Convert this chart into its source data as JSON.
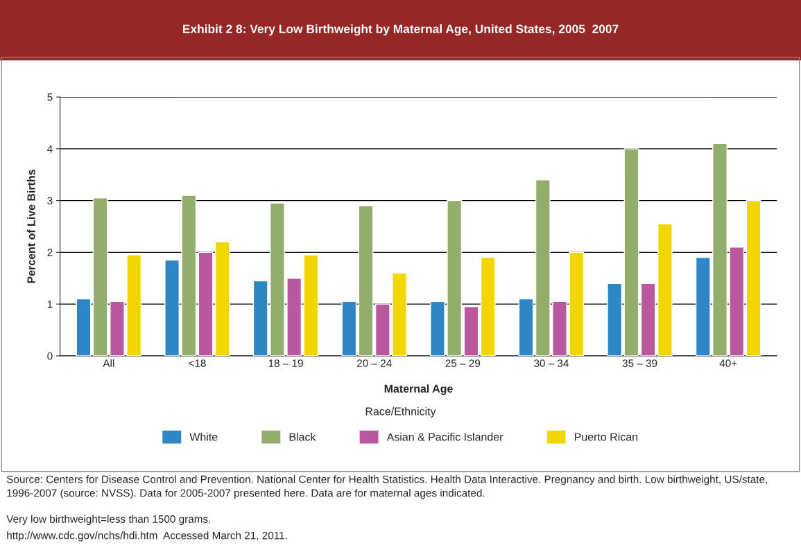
{
  "chart_data": {
    "type": "bar",
    "title": "Exhibit 2 8: Very Low Birthweight by Maternal Age, United States, 2005  2007",
    "xlabel": "Maternal Age",
    "ylabel": "Percent of Live Births",
    "legend_title": "Race/Ethnicity",
    "categories": [
      "All",
      "<18",
      "18 – 19",
      "20 – 24",
      "25 – 29",
      "30 – 34",
      "35 – 39",
      "40+"
    ],
    "series": [
      {
        "name": "White",
        "color": "#2e86c6",
        "values": [
          1.1,
          1.85,
          1.45,
          1.05,
          1.05,
          1.1,
          1.4,
          1.9
        ]
      },
      {
        "name": "Black",
        "color": "#93ad6c",
        "values": [
          3.05,
          3.1,
          2.95,
          2.9,
          3.0,
          3.4,
          4.0,
          4.1
        ]
      },
      {
        "name": "Asian & Pacific Islander",
        "color": "#b9589e",
        "values": [
          1.05,
          2.0,
          1.5,
          1.0,
          0.95,
          1.05,
          1.4,
          2.1
        ]
      },
      {
        "name": "Puerto Rican",
        "color": "#f2d600",
        "values": [
          1.95,
          2.2,
          1.95,
          1.6,
          1.9,
          2.0,
          2.55,
          3.0
        ]
      }
    ],
    "ylim": [
      0,
      5
    ],
    "yticks": [
      0,
      1,
      2,
      3,
      4,
      5
    ],
    "grid": "y",
    "legend": "bottom",
    "annotations": [
      "Source: Centers for Disease Control and Prevention. National Center for Health Statistics. Health Data Interactive. Pregnancy and birth. Low birthweight, US/state, 1996-2007 (source: NVSS). Data for 2005-2007 presented here. Data are for maternal ages indicated.",
      "Very low birthweight=less than 1500 grams.",
      "http://www.cdc.gov/nchs/hdi.htm  Accessed March 21, 2011."
    ]
  }
}
